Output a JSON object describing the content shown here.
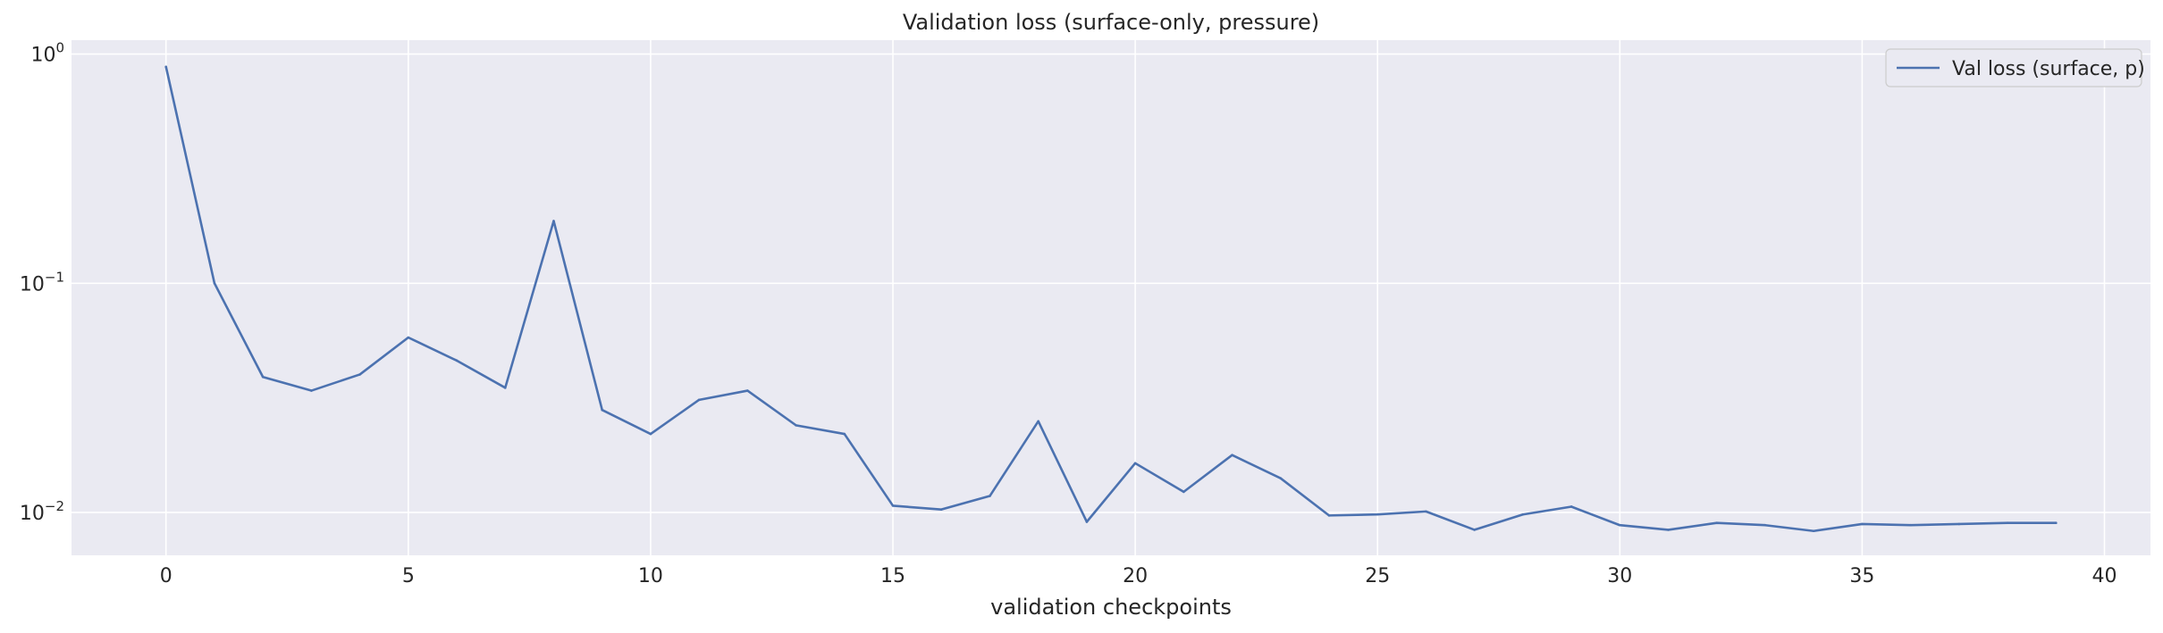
{
  "chart_data": {
    "type": "line",
    "title": "Validation loss (surface-only, pressure)",
    "xlabel": "validation checkpoints",
    "ylabel": "",
    "y_scale": "log",
    "xlim": [
      -1.95,
      40.95
    ],
    "ylim": [
      0.0065,
      1.15
    ],
    "x_ticks": [
      0,
      5,
      10,
      15,
      20,
      25,
      30,
      35,
      40
    ],
    "y_ticks": [
      {
        "value": 1,
        "base": "10",
        "exp": "0"
      },
      {
        "value": 0.1,
        "base": "10",
        "exp": "−1"
      },
      {
        "value": 0.01,
        "base": "10",
        "exp": "−2"
      }
    ],
    "grid": true,
    "legend_position": "top-right",
    "background_color": "#eaeaf2",
    "grid_color": "#ffffff",
    "series": [
      {
        "name": "Val loss (surface, p)",
        "color": "#4c72b0",
        "x": [
          0,
          1,
          2,
          3,
          4,
          5,
          6,
          7,
          8,
          9,
          10,
          11,
          12,
          13,
          14,
          15,
          16,
          17,
          18,
          19,
          20,
          21,
          22,
          23,
          24,
          25,
          26,
          27,
          28,
          29,
          30,
          31,
          32,
          33,
          34,
          35,
          36,
          37,
          38,
          39
        ],
        "values": [
          0.88,
          0.1,
          0.039,
          0.034,
          0.04,
          0.058,
          0.046,
          0.035,
          0.187,
          0.028,
          0.022,
          0.031,
          0.034,
          0.024,
          0.022,
          0.0107,
          0.0103,
          0.0118,
          0.025,
          0.0091,
          0.0164,
          0.0123,
          0.0178,
          0.0141,
          0.0097,
          0.0098,
          0.0101,
          0.0084,
          0.0098,
          0.0106,
          0.0088,
          0.0084,
          0.009,
          0.0088,
          0.0083,
          0.0089,
          0.0088,
          0.0089,
          0.009,
          0.009
        ]
      }
    ]
  }
}
